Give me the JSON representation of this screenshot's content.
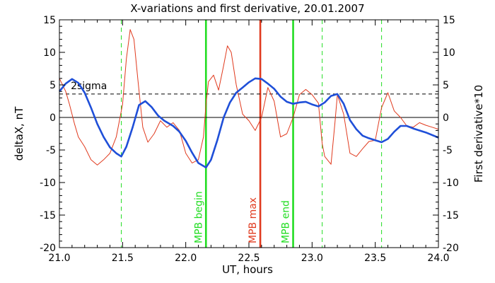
{
  "chart_data": {
    "type": "line",
    "title": "X-variations and first derivative, 20.01.2007",
    "xlabel": "UT, hours",
    "ylabel_left": "deltaX, nT",
    "ylabel_right": "First derivative*10",
    "xlim": [
      21.0,
      24.0
    ],
    "ylim": [
      -20,
      15
    ],
    "x_ticks": [
      "21.0",
      "21.5",
      "22.0",
      "22.5",
      "23.0",
      "23.5",
      "24.0"
    ],
    "y_ticks": [
      "15",
      "10",
      "5",
      "0",
      "-5",
      "-10",
      "-15",
      "-20"
    ],
    "threshold": {
      "label": "2sigma",
      "value": 3.6
    },
    "colors": {
      "deltaX": "#1f4fd8",
      "derivative": "#e03a1e",
      "mpb": "#22dd22",
      "mpb_max": "#e03a1e",
      "dashed": "#22dd22"
    },
    "vlines": [
      {
        "x": 22.16,
        "label": "MPB begin",
        "color": "#22dd22",
        "style": "solid"
      },
      {
        "x": 22.59,
        "label": "MPB max",
        "color": "#e03a1e",
        "style": "solid"
      },
      {
        "x": 22.85,
        "label": "MPB end",
        "color": "#22dd22",
        "style": "solid"
      }
    ],
    "dashed_vlines": [
      21.49,
      23.08,
      23.55
    ],
    "series": [
      {
        "name": "deltaX",
        "axis": "left",
        "x": [
          21.0,
          21.05,
          21.1,
          21.15,
          21.2,
          21.25,
          21.3,
          21.35,
          21.4,
          21.45,
          21.49,
          21.53,
          21.58,
          21.63,
          21.68,
          21.73,
          21.78,
          21.83,
          21.9,
          21.95,
          22.0,
          22.05,
          22.1,
          22.16,
          22.2,
          22.25,
          22.3,
          22.35,
          22.4,
          22.45,
          22.5,
          22.55,
          22.6,
          22.65,
          22.7,
          22.75,
          22.8,
          22.85,
          22.9,
          22.95,
          23.0,
          23.05,
          23.1,
          23.15,
          23.2,
          23.25,
          23.3,
          23.35,
          23.4,
          23.45,
          23.5,
          23.55,
          23.6,
          23.65,
          23.7,
          23.75,
          23.8,
          23.9,
          24.0
        ],
        "values": [
          4,
          5.2,
          5.9,
          5.3,
          3.8,
          1.5,
          -1,
          -3,
          -4.6,
          -5.5,
          -6,
          -4.5,
          -1.5,
          1.9,
          2.5,
          1.6,
          0.3,
          -0.5,
          -1.3,
          -2.2,
          -3.6,
          -5.4,
          -7,
          -7.7,
          -6.5,
          -3.5,
          0,
          2.3,
          3.8,
          4.6,
          5.4,
          6,
          5.9,
          5.2,
          4.4,
          3.2,
          2.4,
          2.1,
          2.3,
          2.4,
          2,
          1.7,
          2.3,
          3.3,
          3.6,
          2.1,
          -0.4,
          -1.8,
          -2.8,
          -3.2,
          -3.5,
          -3.8,
          -3.3,
          -2.2,
          -1.3,
          -1.3,
          -1.7,
          -2.3,
          -3.1
        ]
      },
      {
        "name": "First derivative*10",
        "axis": "right",
        "x": [
          21.0,
          21.05,
          21.08,
          21.12,
          21.15,
          21.2,
          21.25,
          21.3,
          21.35,
          21.4,
          21.45,
          21.5,
          21.53,
          21.56,
          21.59,
          21.62,
          21.66,
          21.7,
          21.75,
          21.8,
          21.85,
          21.9,
          21.95,
          22.0,
          22.05,
          22.1,
          22.14,
          22.16,
          22.18,
          22.22,
          22.26,
          22.3,
          22.33,
          22.36,
          22.4,
          22.45,
          22.5,
          22.55,
          22.6,
          22.65,
          22.7,
          22.75,
          22.8,
          22.85,
          22.9,
          22.95,
          23.0,
          23.05,
          23.08,
          23.1,
          23.15,
          23.18,
          23.2,
          23.25,
          23.3,
          23.35,
          23.4,
          23.45,
          23.5,
          23.55,
          23.6,
          23.65,
          23.7,
          23.75,
          23.8,
          23.85,
          23.9,
          23.95,
          24.0
        ],
        "values": [
          6,
          4,
          2,
          -1,
          -3,
          -4.5,
          -6.5,
          -7.3,
          -6.5,
          -5.5,
          -3,
          2,
          9,
          13.5,
          12,
          6,
          -1.5,
          -3.8,
          -2.5,
          -0.5,
          -1.5,
          -0.8,
          -2,
          -5.5,
          -7,
          -6.5,
          -3,
          2,
          5.5,
          6.5,
          4.2,
          8,
          11,
          10,
          5,
          0.5,
          -0.5,
          -2,
          0,
          4.6,
          2.5,
          -3,
          -2.5,
          0,
          3.5,
          4.3,
          3.5,
          2.2,
          -4,
          -6,
          -7.2,
          -1,
          3.5,
          0.5,
          -5.5,
          -6,
          -4.8,
          -3.7,
          -3.5,
          1.5,
          3.8,
          1,
          0,
          -1.3,
          -1.5,
          -0.8,
          -1.2,
          -1.5,
          -1.8
        ]
      }
    ]
  }
}
